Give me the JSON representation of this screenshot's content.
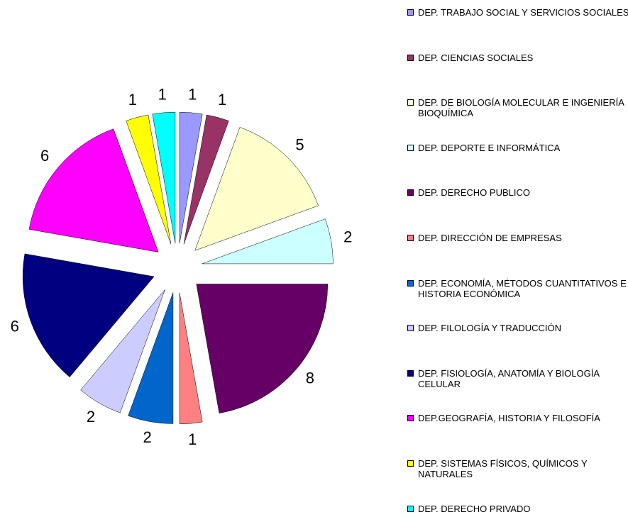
{
  "chart_data": {
    "type": "pie",
    "categories": [
      "DEP. TRABAJO SOCIAL Y SERVICIOS SOCIALES",
      "DEP. CIENCIAS SOCIALES",
      "DEP. DE BIOLOGÍA MOLECULAR E INGENIERÍA BIOQUÍMICA",
      "DEP. DEPORTE E INFORMÁTICA",
      "DEP. DERECHO PUBLICO",
      "DEP. DIRECCIÓN DE EMPRESAS",
      "DEP. ECONOMÍA, MÉTODOS CUANTITATIVOS E HISTORIA ECONÓMICA",
      "DEP. FILOLOGÍA Y TRADUCCIÓN",
      "DEP. FISIOLOGÍA, ANATOMÍA Y BIOLOGÍA CELULAR",
      "DEP.GEOGRAFÍA, HISTORIA Y FILOSOFÍA",
      "DEP. SISTEMAS FÍSICOS, QUÍMICOS Y NATURALES",
      "DEP. DERECHO PRIVADO"
    ],
    "values": [
      1,
      1,
      5,
      2,
      8,
      1,
      2,
      2,
      6,
      6,
      1,
      1
    ],
    "colors": [
      "#9999ff",
      "#993366",
      "#ffffcc",
      "#ccffff",
      "#660066",
      "#ff8080",
      "#0066cc",
      "#ccccff",
      "#000080",
      "#ff00ff",
      "#ffff00",
      "#00ffff"
    ],
    "legend": "right"
  }
}
